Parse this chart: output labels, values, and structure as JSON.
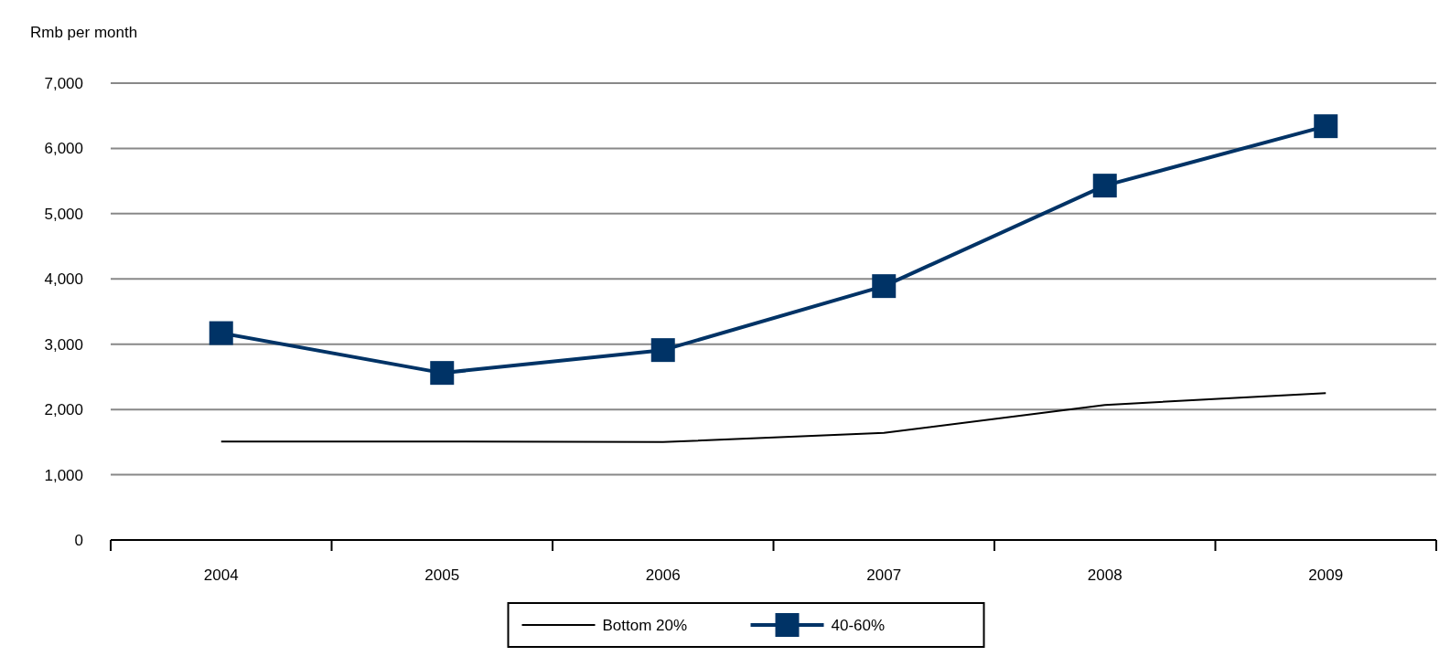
{
  "chart_data": {
    "type": "line",
    "ylabel": "Rmb per month",
    "categories": [
      "2004",
      "2005",
      "2006",
      "2007",
      "2008",
      "2009"
    ],
    "series": [
      {
        "name": "Bottom 20%",
        "color": "#000000",
        "values": [
          1510,
          1510,
          1500,
          1640,
          2070,
          2250
        ],
        "marker": "none"
      },
      {
        "name": "40-60%",
        "color": "#003366",
        "values": [
          3170,
          2560,
          2910,
          3890,
          5430,
          6340
        ],
        "marker": "square"
      }
    ],
    "ylim": [
      0,
      7000
    ],
    "yticks": [
      {
        "value": 0,
        "label": "0"
      },
      {
        "value": 1000,
        "label": "1,000"
      },
      {
        "value": 2000,
        "label": "2,000"
      },
      {
        "value": 3000,
        "label": "3,000"
      },
      {
        "value": 4000,
        "label": "4,000"
      },
      {
        "value": 5000,
        "label": "5,000"
      },
      {
        "value": 6000,
        "label": "6,000"
      },
      {
        "value": 7000,
        "label": "7,000"
      }
    ],
    "grid": "y",
    "legend": "bottom"
  }
}
